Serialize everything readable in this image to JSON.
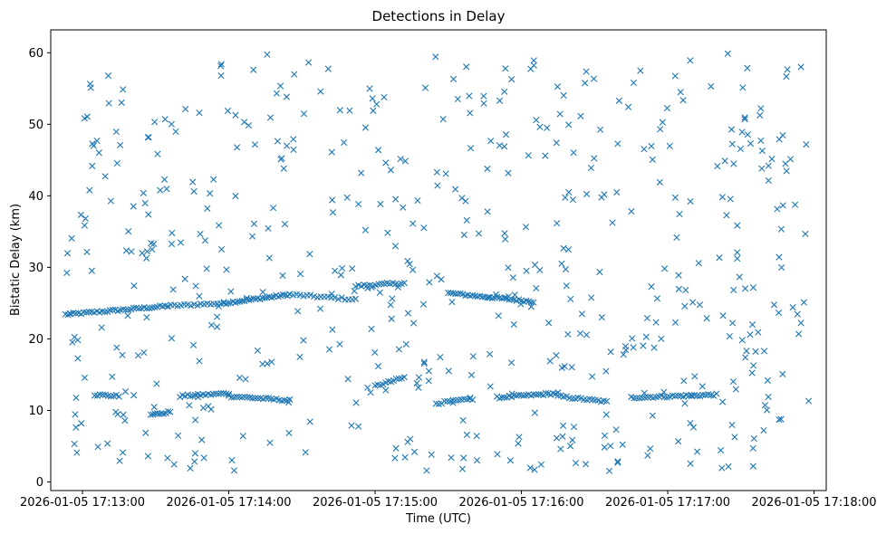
{
  "chart_data": {
    "type": "scatter",
    "title": "Detections in Delay",
    "xlabel": "Time (UTC)",
    "ylabel": "Bistatic Delay (km)",
    "x_ticks": [
      "2026-01-05 17:13:00",
      "2026-01-05 17:14:00",
      "2026-01-05 17:15:00",
      "2026-01-05 17:16:00",
      "2026-01-05 17:17:00",
      "2026-01-05 17:18:00"
    ],
    "y_ticks": [
      "0",
      "10",
      "20",
      "30",
      "40",
      "50",
      "60"
    ],
    "xlim": [
      "2026-01-05 17:12:47",
      "2026-01-05 17:18:05"
    ],
    "ylim": [
      -1.2,
      63.2
    ],
    "marker": "x",
    "color": "#1f77b4",
    "grid": false,
    "series": [
      {
        "name": "",
        "description_points": "Track segments and noise detections below",
        "tracks": [
          {
            "x_start": "2026-01-05 17:12:53",
            "x_end": "2026-01-05 17:13:35",
            "y_start": 23.4,
            "y_end": 24.6,
            "n": 40
          },
          {
            "x_start": "2026-01-05 17:13:35",
            "x_end": "2026-01-05 17:13:58",
            "y_start": 24.6,
            "y_end": 25.0,
            "n": 18
          },
          {
            "x_start": "2026-01-05 17:13:58",
            "x_end": "2026-01-05 17:14:25",
            "y_start": 25.0,
            "y_end": 26.2,
            "n": 30
          },
          {
            "x_start": "2026-01-05 17:14:25",
            "x_end": "2026-01-05 17:14:52",
            "y_start": 26.2,
            "y_end": 25.5,
            "n": 20
          },
          {
            "x_start": "2026-01-05 17:14:52",
            "x_end": "2026-01-05 17:15:12",
            "y_start": 27.4,
            "y_end": 27.8,
            "n": 18
          },
          {
            "x_start": "2026-01-05 17:15:30",
            "x_end": "2026-01-05 17:16:05",
            "y_start": 26.4,
            "y_end": 25.2,
            "n": 36
          },
          {
            "x_start": "2026-01-05 17:13:05",
            "x_end": "2026-01-05 17:13:15",
            "y_start": 12.2,
            "y_end": 12.0,
            "n": 10
          },
          {
            "x_start": "2026-01-05 17:13:40",
            "x_end": "2026-01-05 17:14:00",
            "y_start": 12.0,
            "y_end": 12.4,
            "n": 20
          },
          {
            "x_start": "2026-01-05 17:14:00",
            "x_end": "2026-01-05 17:14:25",
            "y_start": 12.0,
            "y_end": 11.4,
            "n": 24
          },
          {
            "x_start": "2026-01-05 17:15:50",
            "x_end": "2026-01-05 17:16:15",
            "y_start": 11.8,
            "y_end": 12.4,
            "n": 26
          },
          {
            "x_start": "2026-01-05 17:16:15",
            "x_end": "2026-01-05 17:16:35",
            "y_start": 12.0,
            "y_end": 11.2,
            "n": 18
          },
          {
            "x_start": "2026-01-05 17:16:45",
            "x_end": "2026-01-05 17:17:20",
            "y_start": 11.8,
            "y_end": 12.2,
            "n": 32
          },
          {
            "x_start": "2026-01-05 17:15:00",
            "x_end": "2026-01-05 17:15:12",
            "y_start": 13.4,
            "y_end": 14.6,
            "n": 12
          },
          {
            "x_start": "2026-01-05 17:13:28",
            "x_end": "2026-01-05 17:13:36",
            "y_start": 9.4,
            "y_end": 9.8,
            "n": 10
          },
          {
            "x_start": "2026-01-05 17:15:25",
            "x_end": "2026-01-05 17:15:40",
            "y_start": 11.0,
            "y_end": 11.6,
            "n": 14
          }
        ],
        "noise_detections": {
          "count": 560,
          "x_range": [
            "2026-01-05 17:12:53",
            "2026-01-05 17:17:58"
          ],
          "y_range": [
            1.5,
            60.0
          ]
        }
      }
    ]
  }
}
